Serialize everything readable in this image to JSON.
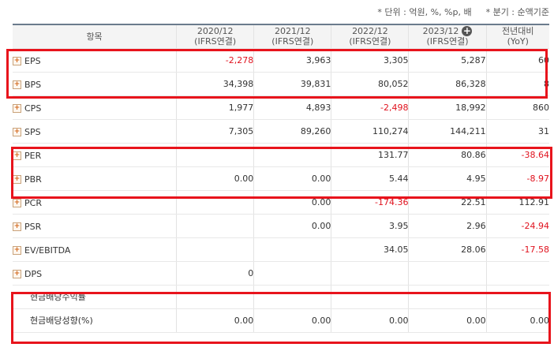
{
  "notes": {
    "unit": "* 단위 : 억원, %, %p, 배",
    "basis": "* 분기 : 순액기준"
  },
  "header": {
    "item_label": "항목",
    "columns": [
      {
        "period": "2020/12",
        "basis": "(IFRS연결)"
      },
      {
        "period": "2021/12",
        "basis": "(IFRS연결)"
      },
      {
        "period": "2022/12",
        "basis": "(IFRS연결)"
      },
      {
        "period": "2023/12",
        "basis": "(IFRS연결)"
      },
      {
        "period": "전년대비",
        "basis": "(YoY)"
      }
    ]
  },
  "rows": [
    {
      "label": "EPS",
      "values": [
        "-2,278",
        "3,963",
        "3,305",
        "5,287",
        "60"
      ],
      "neg": [
        true,
        false,
        false,
        false,
        false
      ]
    },
    {
      "label": "BPS",
      "values": [
        "34,398",
        "39,831",
        "80,052",
        "86,328",
        "8"
      ],
      "neg": [
        false,
        false,
        false,
        false,
        false
      ]
    },
    {
      "label": "CPS",
      "values": [
        "1,977",
        "4,893",
        "-2,498",
        "18,992",
        "860"
      ],
      "neg": [
        false,
        false,
        true,
        false,
        false
      ]
    },
    {
      "label": "SPS",
      "values": [
        "7,305",
        "89,260",
        "110,274",
        "144,211",
        "31"
      ],
      "neg": [
        false,
        false,
        false,
        false,
        false
      ]
    },
    {
      "label": "PER",
      "values": [
        "",
        "",
        "131.77",
        "80.86",
        "-38.64"
      ],
      "neg": [
        false,
        false,
        false,
        false,
        true
      ]
    },
    {
      "label": "PBR",
      "values": [
        "0.00",
        "0.00",
        "5.44",
        "4.95",
        "-8.97"
      ],
      "neg": [
        false,
        false,
        false,
        false,
        true
      ]
    },
    {
      "label": "PCR",
      "values": [
        "",
        "0.00",
        "-174.36",
        "22.51",
        "112.91"
      ],
      "neg": [
        false,
        false,
        true,
        false,
        false
      ]
    },
    {
      "label": "PSR",
      "values": [
        "",
        "0.00",
        "3.95",
        "2.96",
        "-24.94"
      ],
      "neg": [
        false,
        false,
        false,
        false,
        true
      ]
    },
    {
      "label": "EV/EBITDA",
      "values": [
        "",
        "",
        "34.05",
        "28.06",
        "-17.58"
      ],
      "neg": [
        false,
        false,
        false,
        false,
        true
      ]
    },
    {
      "label": "DPS",
      "values": [
        "0",
        "",
        "",
        "",
        ""
      ],
      "neg": [
        false,
        false,
        false,
        false,
        false
      ]
    },
    {
      "label": "현금배당수익률",
      "values": [
        "",
        "",
        "",
        "",
        ""
      ],
      "neg": [
        false,
        false,
        false,
        false,
        false
      ]
    },
    {
      "label": "현금배당성향(%)",
      "values": [
        "0.00",
        "0.00",
        "0.00",
        "0.00",
        "0.00"
      ],
      "neg": [
        false,
        false,
        false,
        false,
        false
      ]
    }
  ],
  "colors": {
    "negative": "#e0121e",
    "highlight": "#e8141c",
    "header_bg": "#f4f4f4"
  }
}
